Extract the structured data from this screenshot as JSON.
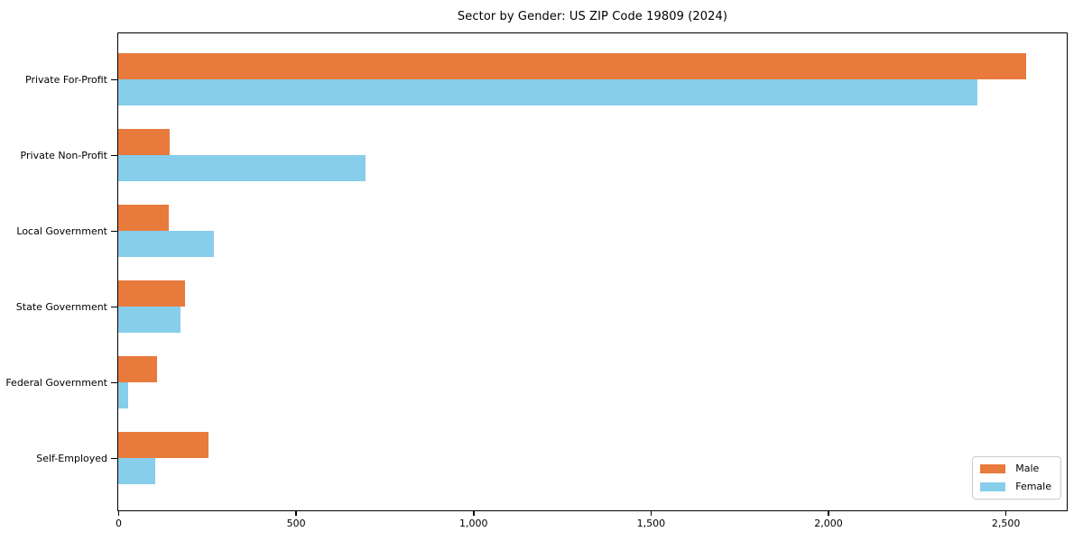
{
  "chart_data": {
    "type": "bar",
    "orientation": "horizontal",
    "title": "Sector by Gender: US ZIP Code 19809 (2024)",
    "categories": [
      "Private For-Profit",
      "Private Non-Profit",
      "Local Government",
      "State Government",
      "Federal Government",
      "Self-Employed"
    ],
    "series": [
      {
        "name": "Male",
        "color": "#e87a3c",
        "values": [
          2556,
          144,
          142,
          188,
          110,
          253
        ]
      },
      {
        "name": "Female",
        "color": "#87ceeb",
        "values": [
          2419,
          695,
          270,
          175,
          28,
          104
        ]
      }
    ],
    "xlabel": "",
    "ylabel": "",
    "xlim": [
      0,
      2670
    ],
    "xticks": [
      {
        "value": 0,
        "label": "0"
      },
      {
        "value": 500,
        "label": "500"
      },
      {
        "value": 1000,
        "label": "1,000"
      },
      {
        "value": 1500,
        "label": "1,500"
      },
      {
        "value": 2000,
        "label": "2,000"
      },
      {
        "value": 2500,
        "label": "2,500"
      }
    ],
    "grid": false,
    "legend_position": "lower right",
    "axis_color": "#000000",
    "background_color": "#ffffff"
  }
}
